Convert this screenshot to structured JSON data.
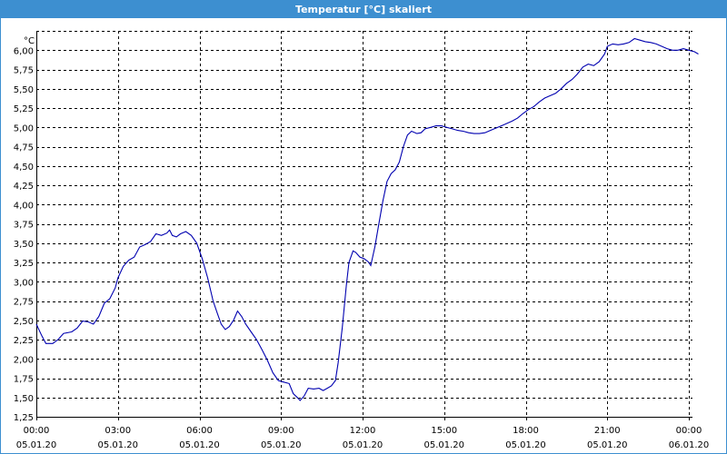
{
  "window": {
    "title": "Temperatur [°C] skaliert"
  },
  "chart_data": {
    "type": "line",
    "title": "Temperatur [°C] skaliert",
    "ylabel": "°C",
    "xlabel": "",
    "ylim": [
      1.25,
      6.25
    ],
    "xlim": [
      0,
      24
    ],
    "grid": true,
    "line_color": "#0000b0",
    "y_ticks": [
      "1,25",
      "1,50",
      "1,75",
      "2,00",
      "2,25",
      "2,50",
      "2,75",
      "3,00",
      "3,25",
      "3,50",
      "3,75",
      "4,00",
      "4,25",
      "4,50",
      "4,75",
      "5,00",
      "5,25",
      "5,50",
      "5,75",
      "6,00"
    ],
    "y_tick_values": [
      1.25,
      1.5,
      1.75,
      2.0,
      2.25,
      2.5,
      2.75,
      3.0,
      3.25,
      3.5,
      3.75,
      4.0,
      4.25,
      4.5,
      4.75,
      5.0,
      5.25,
      5.5,
      5.75,
      6.0
    ],
    "x_ticks": [
      {
        "time": "00:00",
        "date": "05.01.20"
      },
      {
        "time": "03:00",
        "date": "05.01.20"
      },
      {
        "time": "06:00",
        "date": "05.01.20"
      },
      {
        "time": "09:00",
        "date": "05.01.20"
      },
      {
        "time": "12:00",
        "date": "05.01.20"
      },
      {
        "time": "15:00",
        "date": "05.01.20"
      },
      {
        "time": "18:00",
        "date": "05.01.20"
      },
      {
        "time": "21:00",
        "date": "05.01.20"
      },
      {
        "time": "00:00",
        "date": "06.01.20"
      }
    ],
    "x_tick_values": [
      0,
      3,
      6,
      9,
      12,
      15,
      18,
      21,
      24
    ],
    "series": [
      {
        "points": [
          [
            0.0,
            2.45
          ],
          [
            0.2,
            2.3
          ],
          [
            0.35,
            2.2
          ],
          [
            0.6,
            2.2
          ],
          [
            0.8,
            2.25
          ],
          [
            1.0,
            2.33
          ],
          [
            1.3,
            2.35
          ],
          [
            1.5,
            2.4
          ],
          [
            1.7,
            2.49
          ],
          [
            1.9,
            2.48
          ],
          [
            2.1,
            2.45
          ],
          [
            2.3,
            2.55
          ],
          [
            2.5,
            2.72
          ],
          [
            2.7,
            2.78
          ],
          [
            2.9,
            2.92
          ],
          [
            3.0,
            3.05
          ],
          [
            3.2,
            3.2
          ],
          [
            3.4,
            3.28
          ],
          [
            3.6,
            3.32
          ],
          [
            3.8,
            3.45
          ],
          [
            4.0,
            3.48
          ],
          [
            4.2,
            3.52
          ],
          [
            4.4,
            3.62
          ],
          [
            4.6,
            3.6
          ],
          [
            4.8,
            3.63
          ],
          [
            4.9,
            3.67
          ],
          [
            5.0,
            3.6
          ],
          [
            5.15,
            3.58
          ],
          [
            5.3,
            3.62
          ],
          [
            5.5,
            3.65
          ],
          [
            5.7,
            3.6
          ],
          [
            5.9,
            3.5
          ],
          [
            6.1,
            3.3
          ],
          [
            6.3,
            3.05
          ],
          [
            6.5,
            2.75
          ],
          [
            6.65,
            2.6
          ],
          [
            6.8,
            2.45
          ],
          [
            6.95,
            2.38
          ],
          [
            7.1,
            2.42
          ],
          [
            7.25,
            2.5
          ],
          [
            7.4,
            2.62
          ],
          [
            7.55,
            2.55
          ],
          [
            7.7,
            2.45
          ],
          [
            7.9,
            2.35
          ],
          [
            8.1,
            2.25
          ],
          [
            8.3,
            2.12
          ],
          [
            8.5,
            1.98
          ],
          [
            8.7,
            1.82
          ],
          [
            8.9,
            1.72
          ],
          [
            9.1,
            1.7
          ],
          [
            9.3,
            1.68
          ],
          [
            9.45,
            1.55
          ],
          [
            9.6,
            1.5
          ],
          [
            9.7,
            1.46
          ],
          [
            9.85,
            1.52
          ],
          [
            10.0,
            1.62
          ],
          [
            10.2,
            1.61
          ],
          [
            10.4,
            1.62
          ],
          [
            10.55,
            1.59
          ],
          [
            10.7,
            1.62
          ],
          [
            10.85,
            1.65
          ],
          [
            11.0,
            1.72
          ],
          [
            11.1,
            1.95
          ],
          [
            11.25,
            2.4
          ],
          [
            11.4,
            2.95
          ],
          [
            11.5,
            3.25
          ],
          [
            11.65,
            3.4
          ],
          [
            11.75,
            3.38
          ],
          [
            11.9,
            3.32
          ],
          [
            12.05,
            3.3
          ],
          [
            12.2,
            3.26
          ],
          [
            12.3,
            3.21
          ],
          [
            12.45,
            3.45
          ],
          [
            12.6,
            3.75
          ],
          [
            12.75,
            4.05
          ],
          [
            12.9,
            4.3
          ],
          [
            13.05,
            4.4
          ],
          [
            13.2,
            4.45
          ],
          [
            13.35,
            4.55
          ],
          [
            13.5,
            4.75
          ],
          [
            13.65,
            4.9
          ],
          [
            13.8,
            4.95
          ],
          [
            14.0,
            4.92
          ],
          [
            14.15,
            4.93
          ],
          [
            14.3,
            4.98
          ],
          [
            14.5,
            5.0
          ],
          [
            14.7,
            5.02
          ],
          [
            14.9,
            5.02
          ],
          [
            15.1,
            5.0
          ],
          [
            15.3,
            4.98
          ],
          [
            15.5,
            4.96
          ],
          [
            15.7,
            4.95
          ],
          [
            15.9,
            4.93
          ],
          [
            16.1,
            4.92
          ],
          [
            16.3,
            4.92
          ],
          [
            16.5,
            4.93
          ],
          [
            16.7,
            4.96
          ],
          [
            16.9,
            4.99
          ],
          [
            17.1,
            5.02
          ],
          [
            17.3,
            5.05
          ],
          [
            17.5,
            5.08
          ],
          [
            17.7,
            5.12
          ],
          [
            17.9,
            5.18
          ],
          [
            18.1,
            5.23
          ],
          [
            18.3,
            5.27
          ],
          [
            18.5,
            5.33
          ],
          [
            18.7,
            5.38
          ],
          [
            18.9,
            5.41
          ],
          [
            19.1,
            5.44
          ],
          [
            19.3,
            5.5
          ],
          [
            19.5,
            5.57
          ],
          [
            19.7,
            5.62
          ],
          [
            19.9,
            5.69
          ],
          [
            20.1,
            5.78
          ],
          [
            20.3,
            5.82
          ],
          [
            20.5,
            5.8
          ],
          [
            20.7,
            5.85
          ],
          [
            20.9,
            5.95
          ],
          [
            21.0,
            6.05
          ],
          [
            21.2,
            6.08
          ],
          [
            21.4,
            6.07
          ],
          [
            21.6,
            6.08
          ],
          [
            21.8,
            6.1
          ],
          [
            22.0,
            6.15
          ],
          [
            22.2,
            6.13
          ],
          [
            22.4,
            6.11
          ],
          [
            22.6,
            6.1
          ],
          [
            22.8,
            6.08
          ],
          [
            23.0,
            6.05
          ],
          [
            23.2,
            6.02
          ],
          [
            23.4,
            6.0
          ],
          [
            23.6,
            6.0
          ],
          [
            23.8,
            6.02
          ],
          [
            24.0,
            6.0
          ],
          [
            24.2,
            5.98
          ],
          [
            24.35,
            5.95
          ]
        ]
      }
    ]
  }
}
